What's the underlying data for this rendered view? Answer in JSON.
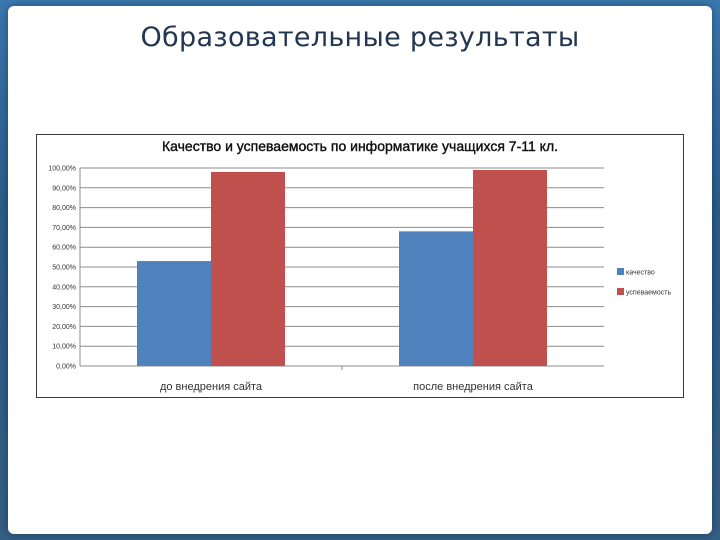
{
  "slide": {
    "title": "Образовательные результаты"
  },
  "colors": {
    "series_1": "#4f81bd",
    "series_2": "#c0504d",
    "gridline": "#8c8c8c"
  },
  "chart_data": {
    "type": "bar",
    "title": "Качество и успеваемость по информатике учащихся 7-11 кл.",
    "categories": [
      "до внедрения сайта",
      "после внедрения сайта"
    ],
    "series": [
      {
        "name": "качество",
        "values": [
          53,
          68
        ]
      },
      {
        "name": "успеваемость",
        "values": [
          98,
          99
        ]
      }
    ],
    "ylim": [
      0,
      100
    ],
    "y_ticks": [
      0,
      10,
      20,
      30,
      40,
      50,
      60,
      70,
      80,
      90,
      100
    ],
    "y_tick_labels": [
      "0,00%",
      "10,00%",
      "20,00%",
      "30,00%",
      "40,00%",
      "50,00%",
      "60,00%",
      "70,00%",
      "80,00%",
      "90,00%",
      "100,00%"
    ],
    "xlabel": "",
    "ylabel": "",
    "grid": true,
    "legend": "right"
  }
}
